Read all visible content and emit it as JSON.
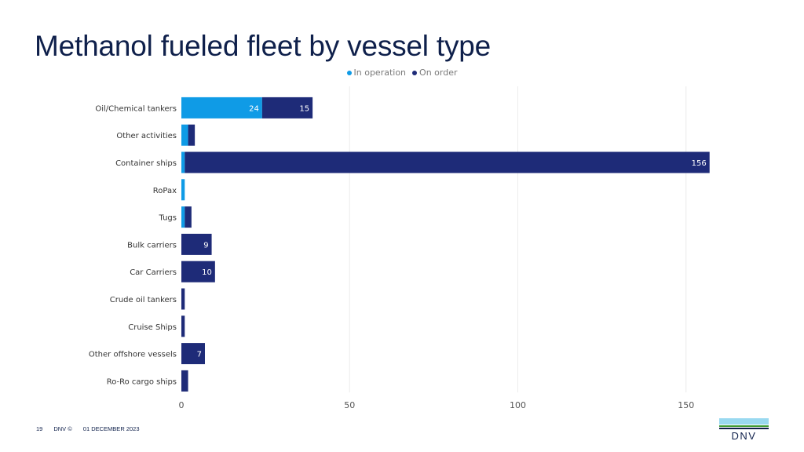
{
  "slide": {
    "title": "Methanol fueled fleet by vessel type"
  },
  "legend": {
    "items": [
      {
        "label": "In operation",
        "color": "#0f9be6"
      },
      {
        "label": "On order",
        "color": "#1e2b78"
      }
    ]
  },
  "chart_data": {
    "type": "bar",
    "orientation": "horizontal",
    "stacked": true,
    "title": "",
    "xlabel": "",
    "ylabel": "",
    "xlim": [
      0,
      160
    ],
    "x_ticks": [
      0,
      50,
      100,
      150
    ],
    "grid": true,
    "legend_position": "top",
    "categories": [
      "Oil/Chemical tankers",
      "Other activities",
      "Container ships",
      "RoPax",
      "Tugs",
      "Bulk carriers",
      "Car Carriers",
      "Crude oil tankers",
      "Cruise Ships",
      "Other offshore vessels",
      "Ro-Ro cargo ships"
    ],
    "series": [
      {
        "name": "In operation",
        "color": "#0f9be6",
        "values": [
          24,
          2,
          1,
          1,
          1,
          0,
          0,
          0,
          0,
          0,
          0
        ],
        "data_labels": [
          "24",
          "",
          "",
          "",
          "",
          "",
          "",
          "",
          "",
          "",
          ""
        ]
      },
      {
        "name": "On order",
        "color": "#1e2b78",
        "values": [
          15,
          2,
          156,
          0,
          2,
          9,
          10,
          1,
          1,
          7,
          2
        ],
        "data_labels": [
          "15",
          "",
          "156",
          "",
          "",
          "9",
          "10",
          "",
          "",
          "7",
          ""
        ]
      }
    ]
  },
  "footer": {
    "page_number": "19",
    "copyright": "DNV ©",
    "date": "01 DECEMBER 2023"
  },
  "logo": {
    "text": "DNV"
  }
}
